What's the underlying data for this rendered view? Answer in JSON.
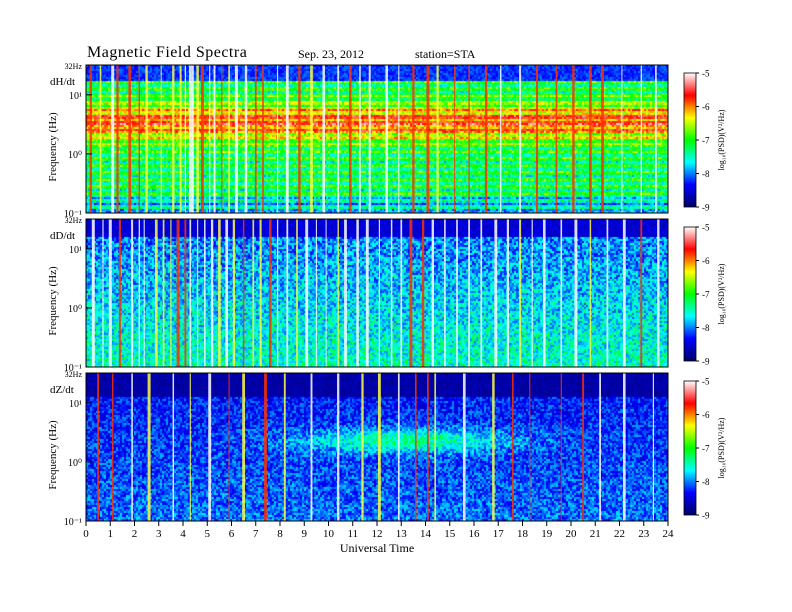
{
  "header": {
    "title": "Magnetic  Field  Spectra",
    "date": "Sep. 23, 2012",
    "station": "station=STA"
  },
  "chart_data": {
    "type": "heatmap",
    "title": "Magnetic  Field  Spectra",
    "xlabel": "Universal  Time",
    "x_ticks": [
      "0",
      "1",
      "2",
      "3",
      "4",
      "5",
      "6",
      "7",
      "8",
      "9",
      "10",
      "11",
      "12",
      "13",
      "14",
      "15",
      "16",
      "17",
      "18",
      "19",
      "20",
      "21",
      "22",
      "23",
      "24"
    ],
    "xlim": [
      0,
      24
    ],
    "panels": [
      {
        "label": "dH/dt",
        "ylabel": "Frequency  (Hz)",
        "y_scale": "log",
        "ylim": [
          0.1,
          32
        ],
        "y_ticks": [
          "10⁻¹",
          "10⁰",
          "10¹",
          "32Hz"
        ],
        "colorbar": {
          "label": "log₁₀(PSD)(V²/Hz)",
          "range": [
            -9,
            -5
          ],
          "ticks": [
            "-9",
            "-8",
            "-7",
            "-6",
            "-5"
          ]
        },
        "description_level": "high",
        "spikes_ut": [
          0.2,
          0.6,
          1.1,
          1.3,
          1.8,
          2.2,
          2.5,
          3.1,
          3.6,
          3.9,
          4.1,
          4.3,
          4.4,
          4.6,
          4.8,
          5.1,
          5.3,
          5.6,
          5.9,
          6.2,
          6.6,
          7.0,
          7.3,
          7.9,
          8.3,
          8.8,
          9.3,
          9.8,
          10.4,
          10.9,
          11.3,
          11.7,
          12.4,
          12.9,
          13.5,
          14.1,
          14.5,
          15.2,
          15.8,
          16.5,
          17.1,
          17.9,
          18.6,
          19.4,
          20.1,
          20.8,
          21.3,
          22.1,
          22.9,
          23.5
        ]
      },
      {
        "label": "dD/dt",
        "ylabel": "Frequency  (Hz)",
        "y_scale": "log",
        "ylim": [
          0.1,
          32
        ],
        "y_ticks": [
          "10⁻¹",
          "10⁰",
          "10¹",
          "32Hz"
        ],
        "colorbar": {
          "label": "log₁₀(PSD)(V²/Hz)",
          "range": [
            -9,
            -5
          ],
          "ticks": [
            "-9",
            "-8",
            "-7",
            "-6",
            "-5"
          ]
        },
        "description_level": "medium",
        "spikes_ut": [
          0.3,
          0.7,
          1.0,
          1.4,
          1.9,
          2.2,
          2.4,
          2.9,
          3.2,
          3.5,
          3.8,
          4.1,
          4.3,
          4.6,
          4.9,
          5.2,
          5.5,
          5.8,
          6.1,
          6.5,
          6.9,
          7.2,
          7.6,
          7.9,
          8.3,
          8.7,
          9.1,
          9.5,
          9.9,
          10.4,
          10.7,
          11.2,
          11.6,
          12.1,
          12.6,
          13.0,
          13.4,
          13.9,
          14.3,
          14.8,
          15.3,
          15.8,
          16.3,
          16.9,
          17.4,
          17.9,
          18.4,
          18.9,
          19.6,
          20.2,
          20.8,
          21.5,
          22.2,
          22.9,
          23.6
        ]
      },
      {
        "label": "dZ/dt",
        "ylabel": "Frequency  (Hz)",
        "y_scale": "log",
        "ylim": [
          0.1,
          32
        ],
        "y_ticks": [
          "10⁻¹",
          "10⁰",
          "10¹",
          "32Hz"
        ],
        "colorbar": {
          "label": "log₁₀(PSD)(V²/Hz)",
          "range": [
            -9,
            -5
          ],
          "ticks": [
            "-9",
            "-8",
            "-7",
            "-6",
            "-5"
          ]
        },
        "description_level": "low",
        "spikes_ut": [
          0.5,
          1.1,
          1.9,
          2.6,
          3.6,
          4.3,
          5.1,
          5.9,
          6.5,
          7.4,
          8.2,
          9.3,
          10.4,
          11.4,
          12.1,
          12.9,
          13.6,
          14.1,
          14.4,
          15.6,
          16.8,
          17.6,
          18.3,
          19.6,
          20.5,
          21.2,
          22.2,
          23.4
        ]
      }
    ],
    "colormap": [
      "#000066",
      "#0000ff",
      "#00ffff",
      "#00ff00",
      "#ffff00",
      "#ff0000",
      "#ffffff"
    ]
  }
}
